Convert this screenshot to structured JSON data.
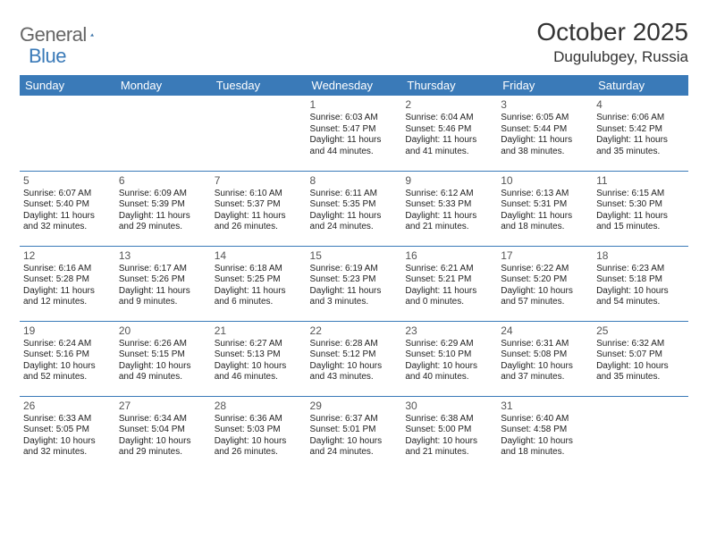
{
  "brand": {
    "general": "General",
    "blue": "Blue"
  },
  "title": "October 2025",
  "location": "Dugulubgey, Russia",
  "colors": {
    "header_bg": "#3a7ab8",
    "header_text": "#ffffff",
    "border": "#3a7ab8",
    "brand_gray": "#666666",
    "brand_blue": "#3a7ab8",
    "text": "#222222",
    "page_bg": "#ffffff"
  },
  "day_headers": [
    "Sunday",
    "Monday",
    "Tuesday",
    "Wednesday",
    "Thursday",
    "Friday",
    "Saturday"
  ],
  "typography": {
    "title_fontsize": 28,
    "location_fontsize": 17,
    "header_fontsize": 13,
    "cell_fontsize": 10
  },
  "weeks": [
    [
      {
        "day": ""
      },
      {
        "day": ""
      },
      {
        "day": ""
      },
      {
        "day": "1",
        "sunrise": "Sunrise: 6:03 AM",
        "sunset": "Sunset: 5:47 PM",
        "daylight1": "Daylight: 11 hours",
        "daylight2": "and 44 minutes."
      },
      {
        "day": "2",
        "sunrise": "Sunrise: 6:04 AM",
        "sunset": "Sunset: 5:46 PM",
        "daylight1": "Daylight: 11 hours",
        "daylight2": "and 41 minutes."
      },
      {
        "day": "3",
        "sunrise": "Sunrise: 6:05 AM",
        "sunset": "Sunset: 5:44 PM",
        "daylight1": "Daylight: 11 hours",
        "daylight2": "and 38 minutes."
      },
      {
        "day": "4",
        "sunrise": "Sunrise: 6:06 AM",
        "sunset": "Sunset: 5:42 PM",
        "daylight1": "Daylight: 11 hours",
        "daylight2": "and 35 minutes."
      }
    ],
    [
      {
        "day": "5",
        "sunrise": "Sunrise: 6:07 AM",
        "sunset": "Sunset: 5:40 PM",
        "daylight1": "Daylight: 11 hours",
        "daylight2": "and 32 minutes."
      },
      {
        "day": "6",
        "sunrise": "Sunrise: 6:09 AM",
        "sunset": "Sunset: 5:39 PM",
        "daylight1": "Daylight: 11 hours",
        "daylight2": "and 29 minutes."
      },
      {
        "day": "7",
        "sunrise": "Sunrise: 6:10 AM",
        "sunset": "Sunset: 5:37 PM",
        "daylight1": "Daylight: 11 hours",
        "daylight2": "and 26 minutes."
      },
      {
        "day": "8",
        "sunrise": "Sunrise: 6:11 AM",
        "sunset": "Sunset: 5:35 PM",
        "daylight1": "Daylight: 11 hours",
        "daylight2": "and 24 minutes."
      },
      {
        "day": "9",
        "sunrise": "Sunrise: 6:12 AM",
        "sunset": "Sunset: 5:33 PM",
        "daylight1": "Daylight: 11 hours",
        "daylight2": "and 21 minutes."
      },
      {
        "day": "10",
        "sunrise": "Sunrise: 6:13 AM",
        "sunset": "Sunset: 5:31 PM",
        "daylight1": "Daylight: 11 hours",
        "daylight2": "and 18 minutes."
      },
      {
        "day": "11",
        "sunrise": "Sunrise: 6:15 AM",
        "sunset": "Sunset: 5:30 PM",
        "daylight1": "Daylight: 11 hours",
        "daylight2": "and 15 minutes."
      }
    ],
    [
      {
        "day": "12",
        "sunrise": "Sunrise: 6:16 AM",
        "sunset": "Sunset: 5:28 PM",
        "daylight1": "Daylight: 11 hours",
        "daylight2": "and 12 minutes."
      },
      {
        "day": "13",
        "sunrise": "Sunrise: 6:17 AM",
        "sunset": "Sunset: 5:26 PM",
        "daylight1": "Daylight: 11 hours",
        "daylight2": "and 9 minutes."
      },
      {
        "day": "14",
        "sunrise": "Sunrise: 6:18 AM",
        "sunset": "Sunset: 5:25 PM",
        "daylight1": "Daylight: 11 hours",
        "daylight2": "and 6 minutes."
      },
      {
        "day": "15",
        "sunrise": "Sunrise: 6:19 AM",
        "sunset": "Sunset: 5:23 PM",
        "daylight1": "Daylight: 11 hours",
        "daylight2": "and 3 minutes."
      },
      {
        "day": "16",
        "sunrise": "Sunrise: 6:21 AM",
        "sunset": "Sunset: 5:21 PM",
        "daylight1": "Daylight: 11 hours",
        "daylight2": "and 0 minutes."
      },
      {
        "day": "17",
        "sunrise": "Sunrise: 6:22 AM",
        "sunset": "Sunset: 5:20 PM",
        "daylight1": "Daylight: 10 hours",
        "daylight2": "and 57 minutes."
      },
      {
        "day": "18",
        "sunrise": "Sunrise: 6:23 AM",
        "sunset": "Sunset: 5:18 PM",
        "daylight1": "Daylight: 10 hours",
        "daylight2": "and 54 minutes."
      }
    ],
    [
      {
        "day": "19",
        "sunrise": "Sunrise: 6:24 AM",
        "sunset": "Sunset: 5:16 PM",
        "daylight1": "Daylight: 10 hours",
        "daylight2": "and 52 minutes."
      },
      {
        "day": "20",
        "sunrise": "Sunrise: 6:26 AM",
        "sunset": "Sunset: 5:15 PM",
        "daylight1": "Daylight: 10 hours",
        "daylight2": "and 49 minutes."
      },
      {
        "day": "21",
        "sunrise": "Sunrise: 6:27 AM",
        "sunset": "Sunset: 5:13 PM",
        "daylight1": "Daylight: 10 hours",
        "daylight2": "and 46 minutes."
      },
      {
        "day": "22",
        "sunrise": "Sunrise: 6:28 AM",
        "sunset": "Sunset: 5:12 PM",
        "daylight1": "Daylight: 10 hours",
        "daylight2": "and 43 minutes."
      },
      {
        "day": "23",
        "sunrise": "Sunrise: 6:29 AM",
        "sunset": "Sunset: 5:10 PM",
        "daylight1": "Daylight: 10 hours",
        "daylight2": "and 40 minutes."
      },
      {
        "day": "24",
        "sunrise": "Sunrise: 6:31 AM",
        "sunset": "Sunset: 5:08 PM",
        "daylight1": "Daylight: 10 hours",
        "daylight2": "and 37 minutes."
      },
      {
        "day": "25",
        "sunrise": "Sunrise: 6:32 AM",
        "sunset": "Sunset: 5:07 PM",
        "daylight1": "Daylight: 10 hours",
        "daylight2": "and 35 minutes."
      }
    ],
    [
      {
        "day": "26",
        "sunrise": "Sunrise: 6:33 AM",
        "sunset": "Sunset: 5:05 PM",
        "daylight1": "Daylight: 10 hours",
        "daylight2": "and 32 minutes."
      },
      {
        "day": "27",
        "sunrise": "Sunrise: 6:34 AM",
        "sunset": "Sunset: 5:04 PM",
        "daylight1": "Daylight: 10 hours",
        "daylight2": "and 29 minutes."
      },
      {
        "day": "28",
        "sunrise": "Sunrise: 6:36 AM",
        "sunset": "Sunset: 5:03 PM",
        "daylight1": "Daylight: 10 hours",
        "daylight2": "and 26 minutes."
      },
      {
        "day": "29",
        "sunrise": "Sunrise: 6:37 AM",
        "sunset": "Sunset: 5:01 PM",
        "daylight1": "Daylight: 10 hours",
        "daylight2": "and 24 minutes."
      },
      {
        "day": "30",
        "sunrise": "Sunrise: 6:38 AM",
        "sunset": "Sunset: 5:00 PM",
        "daylight1": "Daylight: 10 hours",
        "daylight2": "and 21 minutes."
      },
      {
        "day": "31",
        "sunrise": "Sunrise: 6:40 AM",
        "sunset": "Sunset: 4:58 PM",
        "daylight1": "Daylight: 10 hours",
        "daylight2": "and 18 minutes."
      },
      {
        "day": ""
      }
    ]
  ]
}
